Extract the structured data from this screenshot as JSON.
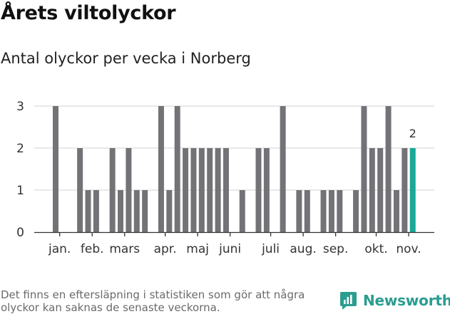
{
  "header": {
    "title": "Årets viltolyckor",
    "subtitle": "Antal olyckor per vecka i Norberg"
  },
  "footer": {
    "note": "Det finns en eftersläpning i statistiken som gör att några olyckor kan saknas de senaste veckorna.",
    "brand": "Newsworthy"
  },
  "colors": {
    "bar": "#737276",
    "highlight": "#1aa898",
    "grid": "#d9d9d9",
    "axis": "#333333",
    "brand": "#2a9d8f"
  },
  "icons": {
    "brand_logo": "newsworthy-logo-icon"
  },
  "chart_data": {
    "type": "bar",
    "title": "Årets viltolyckor",
    "subtitle": "Antal olyckor per vecka i Norberg",
    "xlabel": "",
    "ylabel": "",
    "ylim": [
      0,
      3
    ],
    "yticks": [
      0,
      1,
      2,
      3
    ],
    "grid": true,
    "x_weeks": [
      1,
      2,
      3,
      4,
      5,
      6,
      7,
      8,
      9,
      10,
      11,
      12,
      13,
      14,
      15,
      16,
      17,
      18,
      19,
      20,
      21,
      22,
      23,
      24,
      25,
      26,
      27,
      28,
      29,
      30,
      31,
      32,
      33,
      34,
      35,
      36,
      37,
      38,
      39,
      40,
      41,
      42,
      43,
      44,
      45,
      46
    ],
    "values": [
      3,
      0,
      0,
      2,
      1,
      1,
      0,
      2,
      1,
      2,
      1,
      1,
      0,
      3,
      1,
      3,
      2,
      2,
      2,
      2,
      2,
      2,
      0,
      1,
      0,
      2,
      2,
      0,
      3,
      0,
      1,
      1,
      0,
      1,
      1,
      1,
      0,
      1,
      3,
      2,
      2,
      3,
      1,
      2,
      2,
      0
    ],
    "highlight_week": 45,
    "highlight_label": "2",
    "month_labels": [
      {
        "label": "jan.",
        "week": 1.5
      },
      {
        "label": "feb.",
        "week": 5.5
      },
      {
        "label": "mars",
        "week": 9.5
      },
      {
        "label": "apr.",
        "week": 14.5
      },
      {
        "label": "maj",
        "week": 18.5
      },
      {
        "label": "juni",
        "week": 22.5
      },
      {
        "label": "juli",
        "week": 27.5
      },
      {
        "label": "aug.",
        "week": 31.5
      },
      {
        "label": "sep.",
        "week": 35.5
      },
      {
        "label": "okt.",
        "week": 40.5
      },
      {
        "label": "nov.",
        "week": 44.5
      }
    ]
  }
}
